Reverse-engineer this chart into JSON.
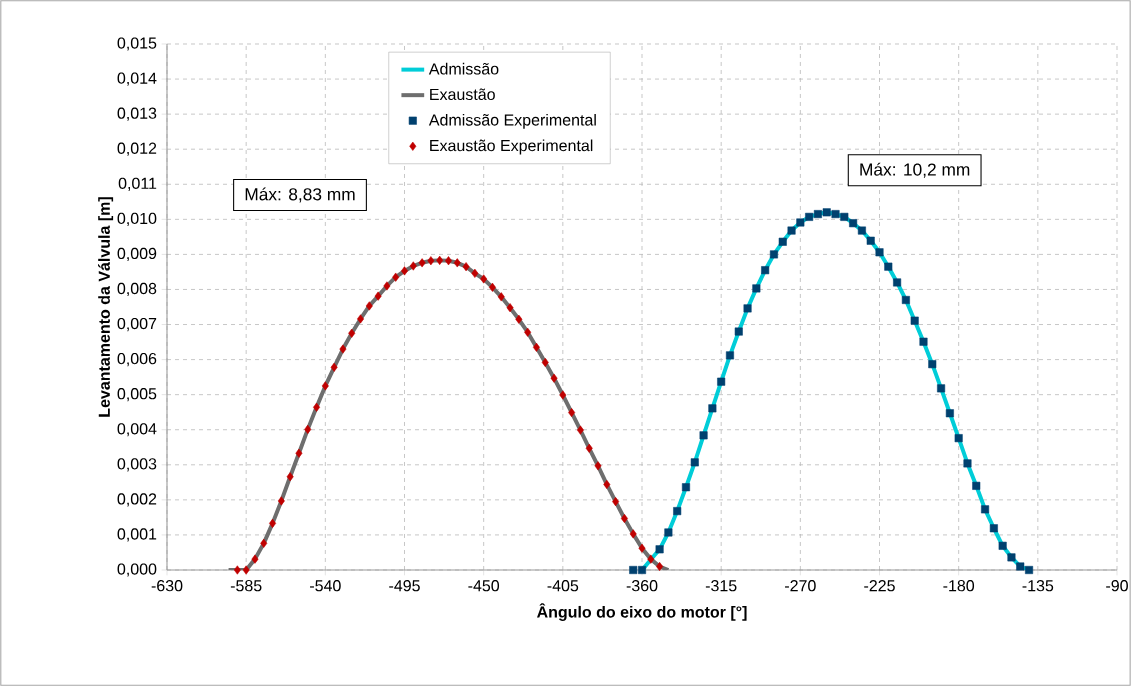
{
  "chart_data": {
    "type": "line",
    "xlabel": "Ângulo do eixo do motor [°]",
    "ylabel": "Levantamento da Válvula [m]",
    "xlim": [
      -630,
      -90
    ],
    "xticks": [
      -630,
      -585,
      -540,
      -495,
      -450,
      -405,
      -360,
      -315,
      -270,
      -225,
      -180,
      -135,
      -90
    ],
    "ylim": [
      0,
      0.015
    ],
    "yticks": [
      {
        "value": 0,
        "label": "0,000"
      },
      {
        "value": 0.001,
        "label": "0,001"
      },
      {
        "value": 0.002,
        "label": "0,002"
      },
      {
        "value": 0.003,
        "label": "0,003"
      },
      {
        "value": 0.004,
        "label": "0,004"
      },
      {
        "value": 0.005,
        "label": "0,005"
      },
      {
        "value": 0.006,
        "label": "0,006"
      },
      {
        "value": 0.007,
        "label": "0,007"
      },
      {
        "value": 0.008,
        "label": "0,008"
      },
      {
        "value": 0.009,
        "label": "0,009"
      },
      {
        "value": 0.01,
        "label": "0,010"
      },
      {
        "value": 0.011,
        "label": "0,011"
      },
      {
        "value": 0.012,
        "label": "0,012"
      },
      {
        "value": 0.013,
        "label": "0,013"
      },
      {
        "value": 0.014,
        "label": "0,014"
      },
      {
        "value": 0.015,
        "label": "0,015"
      }
    ],
    "grid": true,
    "legend": "top",
    "line_style": "solid",
    "annotations": [
      "Máx: 8,83 mm",
      "Máx: 10,2 mm"
    ],
    "series": [
      {
        "name": "Admissão",
        "color": "#00cdd8",
        "marker": "none",
        "x": [
          -360,
          -350,
          -345,
          -340,
          -335,
          -330,
          -325,
          -320,
          -315,
          -310,
          -305,
          -300,
          -295,
          -290,
          -285,
          -280,
          -275,
          -270,
          -265,
          -260,
          -255,
          -250,
          -245,
          -240,
          -235,
          -230,
          -225,
          -220,
          -215,
          -210,
          -205,
          -200,
          -195,
          -190,
          -185,
          -180,
          -175,
          -170,
          -165,
          -160,
          -155,
          -150,
          -145,
          -140
        ],
        "values": [
          0,
          0.00059,
          0.00107,
          0.00168,
          0.00236,
          0.00307,
          0.00384,
          0.00461,
          0.00537,
          0.00612,
          0.0068,
          0.00746,
          0.00803,
          0.00855,
          0.009,
          0.00936,
          0.00968,
          0.00991,
          0.01007,
          0.01015,
          0.0102,
          0.01015,
          0.01007,
          0.00989,
          0.00968,
          0.00939,
          0.00906,
          0.00865,
          0.0082,
          0.0077,
          0.00711,
          0.00651,
          0.00587,
          0.00518,
          0.00447,
          0.00376,
          0.00304,
          0.0024,
          0.00173,
          0.00119,
          0.00069,
          0.00036,
          0.0001,
          0
        ]
      },
      {
        "name": "Exaustão",
        "color": "#6e6e6e",
        "marker": "none",
        "x": [
          -595,
          -590,
          -585,
          -580,
          -575,
          -570,
          -565,
          -560,
          -555,
          -550,
          -545,
          -540,
          -535,
          -530,
          -525,
          -520,
          -515,
          -510,
          -505,
          -500,
          -495,
          -490,
          -485,
          -480,
          -475,
          -470,
          -465,
          -460,
          -455,
          -450,
          -445,
          -440,
          -435,
          -430,
          -425,
          -420,
          -415,
          -410,
          -405,
          -400,
          -395,
          -390,
          -385,
          -380,
          -375,
          -370,
          -365,
          -360,
          -355,
          -350,
          -345
        ],
        "values": [
          0,
          0,
          0,
          0.00031,
          0.00076,
          0.00133,
          0.00197,
          0.00266,
          0.00333,
          0.00401,
          0.00464,
          0.00525,
          0.00578,
          0.0063,
          0.00675,
          0.00716,
          0.00753,
          0.00781,
          0.0081,
          0.00835,
          0.00853,
          0.00867,
          0.00876,
          0.00882,
          0.00883,
          0.00882,
          0.00876,
          0.00865,
          0.00846,
          0.0083,
          0.00806,
          0.00779,
          0.00748,
          0.00715,
          0.00678,
          0.00635,
          0.00592,
          0.00547,
          0.00499,
          0.00449,
          0.00399,
          0.00347,
          0.00297,
          0.00244,
          0.00195,
          0.00147,
          0.00103,
          0.00062,
          0.00031,
          0.0001,
          0
        ]
      },
      {
        "name": "Admissão Experimental",
        "type": "scatter",
        "color": "#00416f",
        "marker": "square",
        "x": [
          -365,
          -360,
          -350,
          -345,
          -340,
          -335,
          -330,
          -325,
          -320,
          -315,
          -310,
          -305,
          -300,
          -295,
          -290,
          -285,
          -280,
          -275,
          -270,
          -265,
          -260,
          -255,
          -250,
          -245,
          -240,
          -235,
          -230,
          -225,
          -220,
          -215,
          -210,
          -205,
          -200,
          -195,
          -190,
          -185,
          -180,
          -175,
          -170,
          -165,
          -160,
          -155,
          -150,
          -145,
          -140
        ],
        "values": [
          0,
          0,
          0.00059,
          0.00107,
          0.00168,
          0.00236,
          0.00307,
          0.00384,
          0.00461,
          0.00537,
          0.00612,
          0.0068,
          0.00746,
          0.00803,
          0.00855,
          0.009,
          0.00936,
          0.00968,
          0.00991,
          0.01007,
          0.01015,
          0.0102,
          0.01015,
          0.01007,
          0.00989,
          0.00968,
          0.00939,
          0.00906,
          0.00865,
          0.0082,
          0.0077,
          0.00711,
          0.00651,
          0.00587,
          0.00518,
          0.00447,
          0.00376,
          0.00304,
          0.0024,
          0.00173,
          0.00119,
          0.00069,
          0.00036,
          0.0001,
          0
        ]
      },
      {
        "name": "Exaustão Experimental",
        "type": "scatter",
        "color": "#c00000",
        "marker": "diamond",
        "x": [
          -590,
          -585,
          -580,
          -575,
          -570,
          -565,
          -560,
          -555,
          -550,
          -545,
          -540,
          -535,
          -530,
          -525,
          -520,
          -515,
          -510,
          -505,
          -500,
          -495,
          -490,
          -485,
          -480,
          -475,
          -470,
          -465,
          -460,
          -455,
          -450,
          -445,
          -440,
          -435,
          -430,
          -425,
          -420,
          -415,
          -410,
          -405,
          -400,
          -395,
          -390,
          -385,
          -380,
          -375,
          -370,
          -365,
          -360,
          -355,
          -350
        ],
        "values": [
          0,
          0,
          0.00031,
          0.00076,
          0.00133,
          0.00197,
          0.00266,
          0.00333,
          0.00401,
          0.00464,
          0.00525,
          0.00578,
          0.0063,
          0.00675,
          0.00716,
          0.00753,
          0.00781,
          0.0081,
          0.00835,
          0.00853,
          0.00867,
          0.00876,
          0.00882,
          0.00883,
          0.00882,
          0.00876,
          0.00865,
          0.00846,
          0.0083,
          0.00806,
          0.00779,
          0.00748,
          0.00715,
          0.00678,
          0.00635,
          0.00592,
          0.00547,
          0.00499,
          0.00449,
          0.00399,
          0.00347,
          0.00297,
          0.00244,
          0.00195,
          0.00147,
          0.00103,
          0.00062,
          0.00031,
          0.0001
        ]
      }
    ]
  }
}
